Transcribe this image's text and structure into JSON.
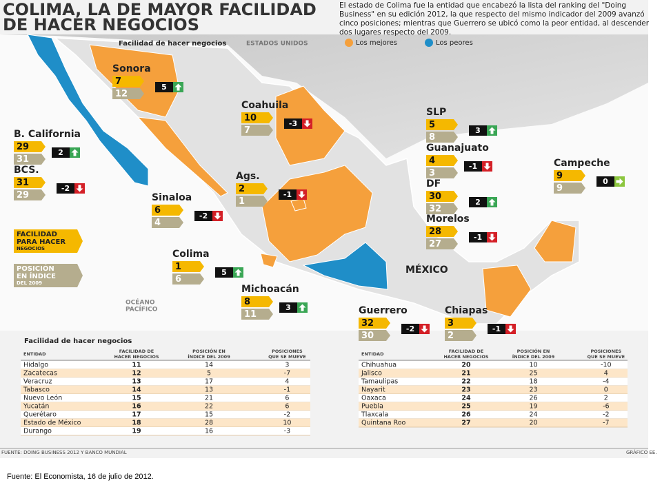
{
  "header": {
    "title": [
      "COLIMA, LA DE MAYOR FACILIDAD",
      "DE HACER NEGOCIOS"
    ],
    "intro": [
      "El estado de Colima fue la entidad que encabezó la lista del ranking del \"Doing",
      "Business\" en su edición 2012, la que respecto del mismo indicador del 2009 avanzó",
      "cinco posiciones; mientras que Guerrero se ubicó como la peor entidad, al descender",
      "dos lugares respecto del 2009."
    ]
  },
  "legend": [
    {
      "name": "Los mejores",
      "color": "#f5a03c"
    },
    {
      "name": "Los peores",
      "color": "#1f8ec8"
    }
  ],
  "map": {
    "subtitle": "Facilidad de hacer negocios",
    "usa": "ESTADOS UNIDOS",
    "mexico": "MÉXICO",
    "ocean": [
      "OCÉANO",
      "PACÍFICO"
    ],
    "key_rank": [
      "FACILIDAD",
      "PARA HACER",
      "NEGOCIOS"
    ],
    "key_2009": [
      "POSICIÓN",
      "EN ÍNDICE",
      "DEL 2009"
    ]
  },
  "states": [
    {
      "name": "Sonora",
      "rank": 7,
      "rank_2009": 12,
      "change": 5
    },
    {
      "name": "Coahuila",
      "rank": 10,
      "rank_2009": 7,
      "change": -3
    },
    {
      "name": "B. California",
      "rank": 29,
      "rank_2009": 31,
      "change": 2
    },
    {
      "name": "BCS.",
      "rank": 31,
      "rank_2009": 29,
      "change": -2
    },
    {
      "name": "Sinaloa",
      "rank": 6,
      "rank_2009": 4,
      "change": -2
    },
    {
      "name": "Ags.",
      "rank": 2,
      "rank_2009": 1,
      "change": -1
    },
    {
      "name": "Colima",
      "rank": 1,
      "rank_2009": 6,
      "change": 5
    },
    {
      "name": "Michoacán",
      "rank": 8,
      "rank_2009": 11,
      "change": 3
    },
    {
      "name": "Guerrero",
      "rank": 32,
      "rank_2009": 30,
      "change": -2
    },
    {
      "name": "Chiapas",
      "rank": 3,
      "rank_2009": 2,
      "change": -1
    },
    {
      "name": "SLP",
      "rank": 5,
      "rank_2009": 8,
      "change": 3
    },
    {
      "name": "Guanajuato",
      "rank": 4,
      "rank_2009": 3,
      "change": -1
    },
    {
      "name": "DF",
      "rank": 30,
      "rank_2009": 32,
      "change": 2
    },
    {
      "name": "Morelos",
      "rank": 28,
      "rank_2009": 27,
      "change": -1
    },
    {
      "name": "Campeche",
      "rank": 9,
      "rank_2009": 9,
      "change": 0
    }
  ],
  "table": {
    "title": "Facilidad de hacer negocios",
    "headers": [
      [
        "ENTIDAD"
      ],
      [
        "FACILIDAD DE",
        "HACER NEGOCIOS"
      ],
      [
        "POSICIÓN EN",
        "ÍNDICE DEL 2009"
      ],
      [
        "POSICIONES",
        "QUE SE MUEVE"
      ]
    ],
    "left": [
      [
        "Hidalgo",
        11,
        14,
        3
      ],
      [
        "Zacatecas",
        12,
        5,
        -7
      ],
      [
        "Veracruz",
        13,
        17,
        4
      ],
      [
        "Tabasco",
        14,
        13,
        -1
      ],
      [
        "Nuevo León",
        15,
        21,
        6
      ],
      [
        "Yucatán",
        16,
        22,
        6
      ],
      [
        "Querétaro",
        17,
        15,
        -2
      ],
      [
        "Estado de México",
        18,
        28,
        10
      ],
      [
        "Durango",
        19,
        16,
        -3
      ]
    ],
    "right": [
      [
        "Chihuahua",
        20,
        10,
        -10
      ],
      [
        "Jalisco",
        21,
        25,
        4
      ],
      [
        "Tamaulipas",
        22,
        18,
        -4
      ],
      [
        "Nayarit",
        23,
        23,
        0
      ],
      [
        "Oaxaca",
        24,
        26,
        2
      ],
      [
        "Puebla",
        25,
        19,
        -6
      ],
      [
        "Tlaxcala",
        26,
        24,
        -2
      ],
      [
        "Quintana Roo",
        27,
        20,
        -7
      ]
    ]
  },
  "footer": {
    "source": "FUENTE: DOING BUSINESS 2012 Y BANCO MUNDIAL",
    "credit": "GRÁFICO EE.",
    "caption": "Fuente: El Economista,  16 de julio de 2012."
  }
}
